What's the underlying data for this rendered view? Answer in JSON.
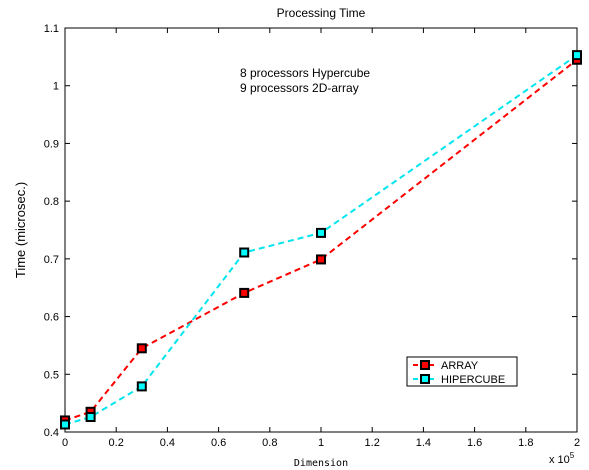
{
  "chart_data": {
    "type": "line",
    "title": "Processing Time",
    "xlabel": "Dimension",
    "ylabel": "Time (microsec.)",
    "x_multiplier_label": "x 10",
    "x_multiplier_exp": "5",
    "xlim": [
      0,
      2
    ],
    "ylim": [
      0.4,
      1.1
    ],
    "xticks": [
      "0",
      "0.2",
      "0.4",
      "0.6",
      "0.8",
      "1",
      "1.2",
      "1.4",
      "1.6",
      "1.8",
      "2"
    ],
    "yticks": [
      "0.4",
      "0.5",
      "0.6",
      "0.7",
      "0.8",
      "0.9",
      "1",
      "1.1"
    ],
    "xtick_values": [
      0,
      0.2,
      0.4,
      0.6,
      0.8,
      1,
      1.2,
      1.4,
      1.6,
      1.8,
      2
    ],
    "ytick_values": [
      0.4,
      0.5,
      0.6,
      0.7,
      0.8,
      0.9,
      1,
      1.1
    ],
    "annotations": [
      "8 processors Hypercube",
      "9 processors 2D-array"
    ],
    "legend_position": "bottom-right",
    "grid": false,
    "series": [
      {
        "name": "ARRAY",
        "color": "#ff0000",
        "marker_color": "#ff0000",
        "x": [
          0,
          0.1,
          0.3,
          0.7,
          1.0,
          2.0
        ],
        "y": [
          0.42,
          0.435,
          0.545,
          0.641,
          0.699,
          1.045
        ]
      },
      {
        "name": "HIPERCUBE",
        "color": "#00e5ee",
        "marker_color": "#00ffff",
        "x": [
          0,
          0.1,
          0.3,
          0.7,
          1.0,
          2.0
        ],
        "y": [
          0.413,
          0.426,
          0.479,
          0.711,
          0.745,
          1.053
        ]
      }
    ]
  }
}
